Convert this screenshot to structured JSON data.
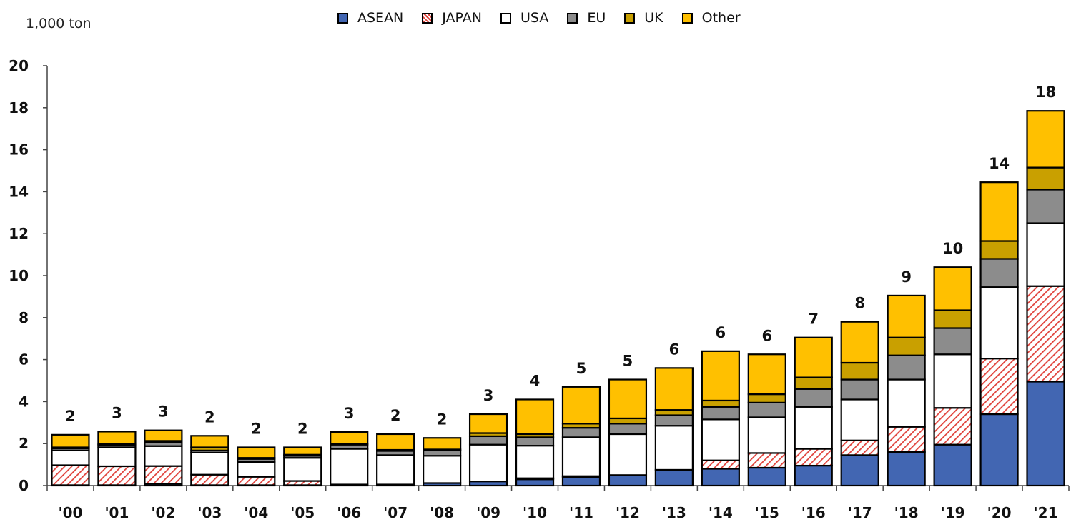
{
  "chart_data": {
    "type": "bar",
    "stacked": true,
    "unit_label": "1,000 ton",
    "categories": [
      "'00",
      "'01",
      "'02",
      "'03",
      "'04",
      "'05",
      "'06",
      "'07",
      "'08",
      "'09",
      "'10",
      "'11",
      "'12",
      "'13",
      "'14",
      "'15",
      "'16",
      "'17",
      "'18",
      "'19",
      "'20",
      "'21"
    ],
    "ylim": [
      0,
      20
    ],
    "yticks": [
      "0",
      "2",
      "4",
      "6",
      "8",
      "10",
      "12",
      "14",
      "16",
      "18",
      "20"
    ],
    "legend_position": "top-center",
    "series": [
      {
        "name": "ASEAN",
        "color": "#4266b2",
        "pattern": "solid",
        "values": [
          0.02,
          0.02,
          0.08,
          0.02,
          0.02,
          0.02,
          0.05,
          0.05,
          0.12,
          0.2,
          0.3,
          0.4,
          0.5,
          0.75,
          0.8,
          0.85,
          0.95,
          1.45,
          1.6,
          1.95,
          3.4,
          4.95
        ]
      },
      {
        "name": "JAPAN",
        "color": "#e0413a",
        "pattern": "hatch",
        "values": [
          0.95,
          0.9,
          0.85,
          0.5,
          0.4,
          0.2,
          0.0,
          0.0,
          0.0,
          0.0,
          0.05,
          0.05,
          0.0,
          0.0,
          0.4,
          0.7,
          0.8,
          0.7,
          1.2,
          1.75,
          2.65,
          4.55
        ]
      },
      {
        "name": "USA",
        "color": "#ffffff",
        "pattern": "solid",
        "values": [
          0.7,
          0.9,
          0.95,
          1.05,
          0.7,
          1.1,
          1.7,
          1.4,
          1.3,
          1.75,
          1.55,
          1.85,
          1.95,
          2.1,
          1.95,
          1.7,
          2.0,
          1.95,
          2.25,
          2.55,
          3.4,
          3.0
        ]
      },
      {
        "name": "EU",
        "color": "#8c8c8c",
        "pattern": "solid",
        "values": [
          0.1,
          0.1,
          0.2,
          0.1,
          0.15,
          0.1,
          0.2,
          0.2,
          0.25,
          0.4,
          0.4,
          0.45,
          0.5,
          0.5,
          0.6,
          0.7,
          0.85,
          0.95,
          1.15,
          1.25,
          1.35,
          1.6
        ]
      },
      {
        "name": "UK",
        "color": "#c9a000",
        "pattern": "solid",
        "values": [
          0.05,
          0.05,
          0.05,
          0.15,
          0.05,
          0.05,
          0.05,
          0.05,
          0.05,
          0.15,
          0.15,
          0.2,
          0.25,
          0.25,
          0.3,
          0.4,
          0.55,
          0.8,
          0.85,
          0.85,
          0.85,
          1.05
        ]
      },
      {
        "name": "Other",
        "color": "#ffc000",
        "pattern": "solid",
        "values": [
          0.6,
          0.6,
          0.5,
          0.55,
          0.5,
          0.35,
          0.55,
          0.75,
          0.55,
          0.9,
          1.65,
          1.75,
          1.85,
          2.0,
          2.35,
          1.9,
          1.9,
          1.95,
          2.0,
          2.05,
          2.8,
          2.7
        ]
      }
    ],
    "totals_labels": [
      "2",
      "3",
      "3",
      "2",
      "2",
      "2",
      "3",
      "2",
      "2",
      "3",
      "4",
      "5",
      "5",
      "6",
      "6",
      "6",
      "7",
      "8",
      "9",
      "10",
      "14",
      "18"
    ]
  }
}
